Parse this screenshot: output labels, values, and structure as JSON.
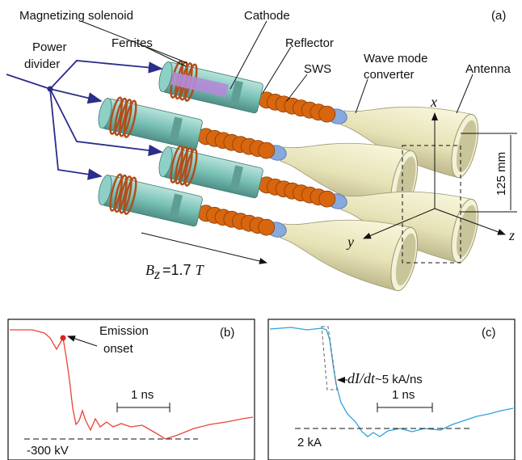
{
  "panel_a": {
    "label": "(a)",
    "callouts": {
      "solenoid": "Magnetizing solenoid",
      "cathode": "Cathode",
      "ferrites": "Ferrites",
      "reflector": "Reflector",
      "sws": "SWS",
      "converter": [
        "Wave mode",
        "converter"
      ],
      "antenna": "Antenna",
      "divider": [
        "Power",
        "divider"
      ]
    },
    "axes": {
      "x": "x",
      "y": "y",
      "z": "z"
    },
    "dimension": "125 mm",
    "field": {
      "symbol": "B",
      "subscript": "z",
      "value": "=1.7",
      "unit": "T"
    }
  },
  "panel_b": {
    "label": "(b)",
    "callout": [
      "Emission",
      "onset"
    ],
    "scale": "1 ns",
    "level": "-300 kV"
  },
  "panel_c": {
    "label": "(c)",
    "callout": {
      "symbol": "dI/dt",
      "value": "~5 kA/ns"
    },
    "scale": "1 ns",
    "level": "2 kA"
  }
}
